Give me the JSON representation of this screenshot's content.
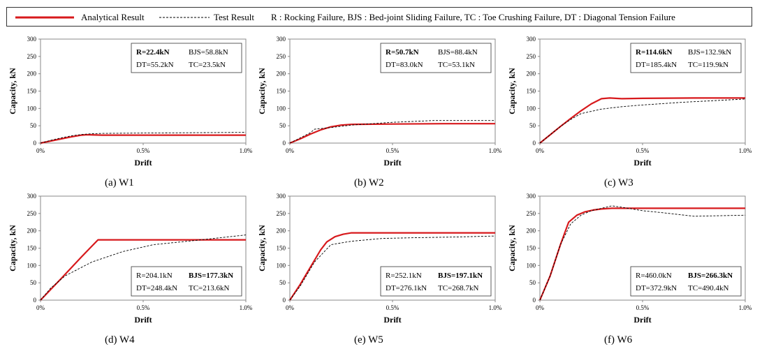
{
  "legend": {
    "analytical_label": "Analytical Result",
    "test_label": "Test Result",
    "definitions": "R : Rocking Failure,   BJS : Bed-joint Sliding Failure,   TC : Toe Crushing Failure,   DT : Diagonal Tension Failure",
    "analytical_color": "#d7191c",
    "test_color": "#000000"
  },
  "chart_data": [
    {
      "type": "line",
      "caption": "(a)  W1",
      "xlabel": "Drift",
      "ylabel": "Capacity, kN",
      "xlim": [
        0,
        1.0
      ],
      "ylim": [
        0,
        300
      ],
      "yticks": [
        0,
        50,
        100,
        150,
        200,
        250,
        300
      ],
      "xticks": [
        {
          "v": 0,
          "label": "0%"
        },
        {
          "v": 0.5,
          "label": "0.5%"
        },
        {
          "v": 1.0,
          "label": "1.0%"
        }
      ],
      "capacities": [
        {
          "label": "R=22.4kN",
          "bold": true
        },
        {
          "label": "BJS=58.8kN",
          "bold": false
        },
        {
          "label": "DT=55.2kN",
          "bold": false
        },
        {
          "label": "TC=23.5kN",
          "bold": false
        }
      ],
      "box_position": "top-right",
      "series": [
        {
          "name": "Analytical Result",
          "x": [
            0,
            0.05,
            0.1,
            0.15,
            0.2,
            0.22,
            0.24,
            0.3,
            0.5,
            1.0
          ],
          "y": [
            0,
            6,
            12,
            18,
            23,
            24,
            24,
            23,
            23,
            23
          ]
        },
        {
          "name": "Test Result",
          "x": [
            0,
            0.05,
            0.1,
            0.15,
            0.2,
            0.25,
            0.3,
            0.5,
            0.75,
            1.0
          ],
          "y": [
            0,
            8,
            15,
            21,
            25,
            27,
            28,
            29,
            30,
            31
          ]
        }
      ]
    },
    {
      "type": "line",
      "caption": "(b)  W2",
      "xlabel": "Drift",
      "ylabel": "Capacity, kN",
      "xlim": [
        0,
        1.0
      ],
      "ylim": [
        0,
        300
      ],
      "yticks": [
        0,
        50,
        100,
        150,
        200,
        250,
        300
      ],
      "xticks": [
        {
          "v": 0,
          "label": "0%"
        },
        {
          "v": 0.5,
          "label": "0.5%"
        },
        {
          "v": 1.0,
          "label": "1.0%"
        }
      ],
      "capacities": [
        {
          "label": "R=50.7kN",
          "bold": true
        },
        {
          "label": "BJS=88.4kN",
          "bold": false
        },
        {
          "label": "DT=83.0kN",
          "bold": false
        },
        {
          "label": "TC=53.1kN",
          "bold": false
        }
      ],
      "box_position": "top-right",
      "series": [
        {
          "name": "Analytical Result",
          "x": [
            0,
            0.05,
            0.1,
            0.15,
            0.2,
            0.25,
            0.3,
            0.5,
            0.75,
            1.0
          ],
          "y": [
            0,
            12,
            26,
            38,
            47,
            52,
            54,
            55,
            56,
            56
          ]
        },
        {
          "name": "Test Result",
          "x": [
            0,
            0.05,
            0.1,
            0.12,
            0.2,
            0.3,
            0.5,
            0.7,
            1.0
          ],
          "y": [
            0,
            15,
            30,
            40,
            45,
            52,
            60,
            65,
            65
          ]
        }
      ]
    },
    {
      "type": "line",
      "caption": "(c)  W3",
      "xlabel": "Drift",
      "ylabel": "Capacity, kN",
      "xlim": [
        0,
        1.0
      ],
      "ylim": [
        0,
        300
      ],
      "yticks": [
        0,
        50,
        100,
        150,
        200,
        250,
        300
      ],
      "xticks": [
        {
          "v": 0,
          "label": "0%"
        },
        {
          "v": 0.5,
          "label": "0.5%"
        },
        {
          "v": 1.0,
          "label": "1.0%"
        }
      ],
      "capacities": [
        {
          "label": "R=114.6kN",
          "bold": true
        },
        {
          "label": "BJS=132.9kN",
          "bold": false
        },
        {
          "label": "DT=185.4kN",
          "bold": false
        },
        {
          "label": "TC=119.9kN",
          "bold": false
        }
      ],
      "box_position": "top-right",
      "series": [
        {
          "name": "Analytical Result",
          "x": [
            0,
            0.05,
            0.1,
            0.15,
            0.2,
            0.25,
            0.3,
            0.34,
            0.4,
            0.5,
            0.75,
            1.0
          ],
          "y": [
            0,
            24,
            48,
            71,
            93,
            113,
            128,
            130,
            128,
            129,
            130,
            130
          ]
        },
        {
          "name": "Test Result",
          "x": [
            0,
            0.05,
            0.1,
            0.15,
            0.2,
            0.3,
            0.4,
            0.5,
            0.7,
            1.0
          ],
          "y": [
            0,
            24,
            48,
            68,
            85,
            98,
            105,
            110,
            118,
            127
          ]
        }
      ]
    },
    {
      "type": "line",
      "caption": "(d)  W4",
      "xlabel": "Drift",
      "ylabel": "Capacity, kN",
      "xlim": [
        0,
        1.0
      ],
      "ylim": [
        0,
        300
      ],
      "yticks": [
        0,
        50,
        100,
        150,
        200,
        250,
        300
      ],
      "xticks": [
        {
          "v": 0,
          "label": "0%"
        },
        {
          "v": 0.5,
          "label": "0.5%"
        },
        {
          "v": 1.0,
          "label": "1.0%"
        }
      ],
      "capacities": [
        {
          "label": "R=204.1kN",
          "bold": false
        },
        {
          "label": "BJS=177.3kN",
          "bold": true
        },
        {
          "label": "DT=248.4kN",
          "bold": false
        },
        {
          "label": "TC=213.6kN",
          "bold": false
        }
      ],
      "box_position": "bottom-right",
      "series": [
        {
          "name": "Analytical Result",
          "x": [
            0,
            0.1,
            0.2,
            0.28,
            0.5,
            0.75,
            1.0
          ],
          "y": [
            0,
            62,
            125,
            174,
            174,
            174,
            174
          ]
        },
        {
          "name": "Test Result",
          "x": [
            0,
            0.05,
            0.12,
            0.25,
            0.4,
            0.55,
            0.75,
            1.0
          ],
          "y": [
            0,
            35,
            70,
            110,
            140,
            160,
            172,
            188
          ]
        }
      ]
    },
    {
      "type": "line",
      "caption": "(e)  W5",
      "xlabel": "Drift",
      "ylabel": "Capacity, kN",
      "xlim": [
        0,
        1.0
      ],
      "ylim": [
        0,
        300
      ],
      "yticks": [
        0,
        50,
        100,
        150,
        200,
        250,
        300
      ],
      "xticks": [
        {
          "v": 0,
          "label": "0%"
        },
        {
          "v": 0.5,
          "label": "0.5%"
        },
        {
          "v": 1.0,
          "label": "1.0%"
        }
      ],
      "capacities": [
        {
          "label": "R=252.1kN",
          "bold": false
        },
        {
          "label": "BJS=197.1kN",
          "bold": true
        },
        {
          "label": "DT=276.1kN",
          "bold": false
        },
        {
          "label": "TC=268.7kN",
          "bold": false
        }
      ],
      "box_position": "bottom-right",
      "series": [
        {
          "name": "Analytical Result",
          "x": [
            0,
            0.05,
            0.1,
            0.15,
            0.18,
            0.22,
            0.26,
            0.3,
            0.5,
            0.75,
            1.0
          ],
          "y": [
            0,
            45,
            95,
            145,
            168,
            183,
            190,
            194,
            194,
            194,
            194
          ]
        },
        {
          "name": "Test Result",
          "x": [
            0,
            0.05,
            0.12,
            0.2,
            0.3,
            0.45,
            0.6,
            0.8,
            1.0
          ],
          "y": [
            0,
            40,
            110,
            160,
            170,
            178,
            180,
            182,
            185
          ]
        }
      ]
    },
    {
      "type": "line",
      "caption": "(f)  W6",
      "xlabel": "Drift",
      "ylabel": "Capacity, kN",
      "xlim": [
        0,
        1.0
      ],
      "ylim": [
        0,
        300
      ],
      "yticks": [
        0,
        50,
        100,
        150,
        200,
        250,
        300
      ],
      "xticks": [
        {
          "v": 0,
          "label": "0%"
        },
        {
          "v": 0.5,
          "label": "0.5%"
        },
        {
          "v": 1.0,
          "label": "1.0%"
        }
      ],
      "capacities": [
        {
          "label": "R=460.0kN",
          "bold": false
        },
        {
          "label": "BJS=266.3kN",
          "bold": true
        },
        {
          "label": "DT=372.9kN",
          "bold": false
        },
        {
          "label": "TC=490.4kN",
          "bold": false
        }
      ],
      "box_position": "bottom-right",
      "series": [
        {
          "name": "Analytical Result",
          "x": [
            0,
            0.05,
            0.1,
            0.14,
            0.18,
            0.22,
            0.26,
            0.3,
            0.35,
            0.5,
            0.75,
            1.0
          ],
          "y": [
            0,
            70,
            160,
            225,
            245,
            255,
            260,
            263,
            265,
            265,
            265,
            265
          ]
        },
        {
          "name": "Test Result",
          "x": [
            0,
            0.05,
            0.1,
            0.15,
            0.2,
            0.25,
            0.3,
            0.35,
            0.4,
            0.5,
            0.6,
            0.75,
            1.0
          ],
          "y": [
            0,
            70,
            160,
            220,
            245,
            258,
            265,
            272,
            268,
            258,
            252,
            242,
            245
          ]
        }
      ]
    }
  ]
}
